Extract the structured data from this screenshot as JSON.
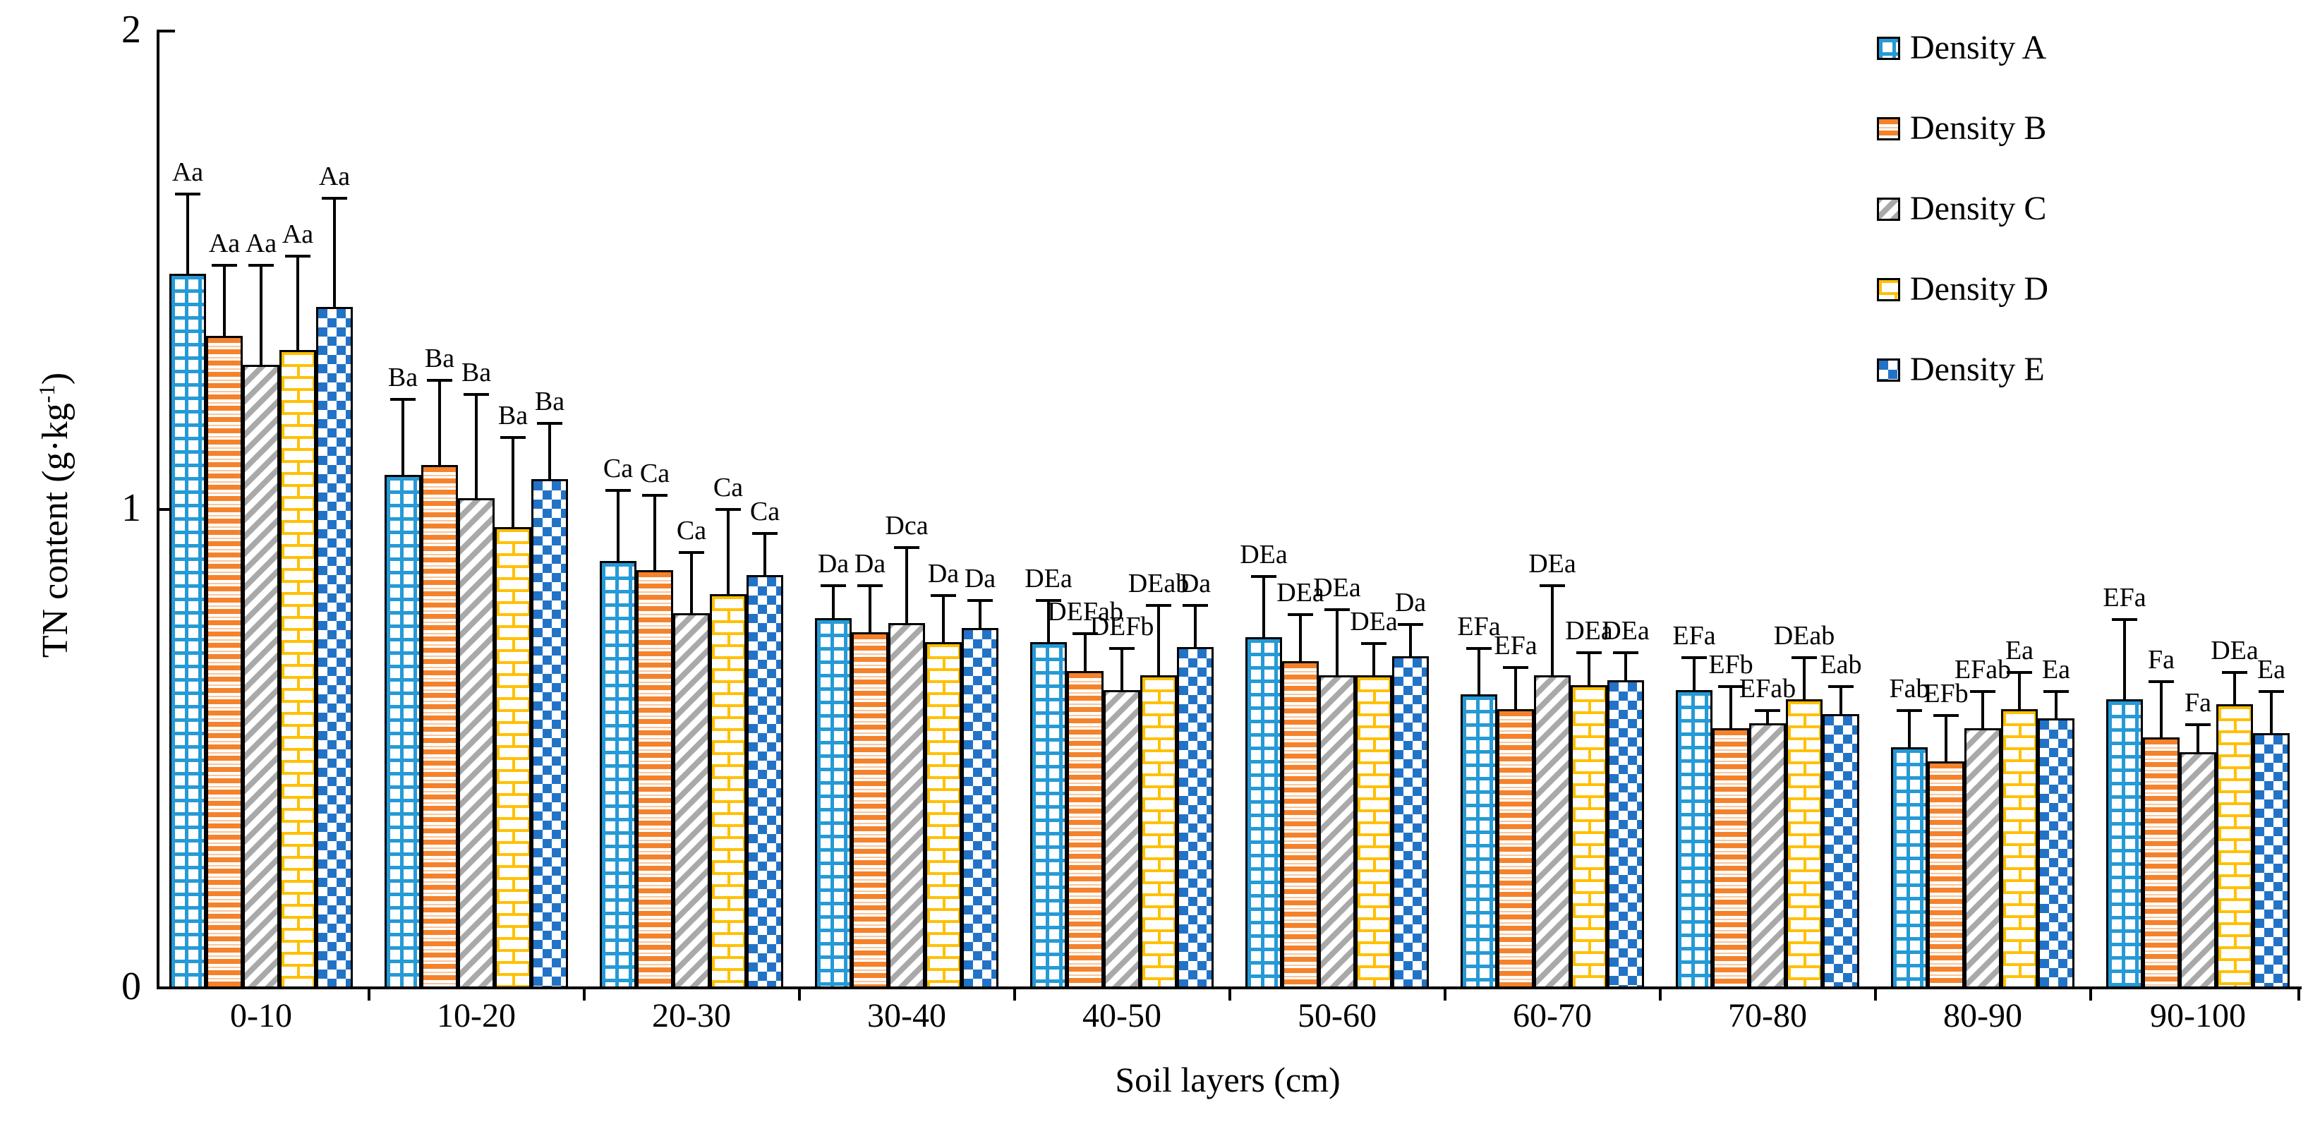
{
  "figure": {
    "y_axis": {
      "title_prefix": "TN content (g·kg",
      "title_sup": "-1",
      "title_suffix": ")",
      "tick_labels": [
        "0",
        "1",
        "2"
      ]
    },
    "x_axis": {
      "title": "Soil layers (cm)"
    }
  },
  "colors": {
    "density_a_grid_blue": "#259AD6",
    "density_b_orange": "#F5822B",
    "density_b_light_orange": "#F9C59B",
    "density_c_gray": "#A9A9A9",
    "density_d_yellow": "#FFC000",
    "density_e_blue": "#2273C6",
    "axis_and_text": "#000000",
    "background": "#FFFFFF"
  },
  "chart_data": {
    "type": "bar",
    "title": "",
    "xlabel": "Soil layers (cm)",
    "ylabel": "TN content (g·kg-1)",
    "ylim": [
      0,
      2
    ],
    "yticks": [
      0,
      1,
      2
    ],
    "grid": false,
    "legend_position": "top-right",
    "error_bars": "upper only",
    "categories": [
      "0-10",
      "10-20",
      "20-30",
      "30-40",
      "40-50",
      "50-60",
      "60-70",
      "70-80",
      "80-90",
      "90-100"
    ],
    "series": [
      {
        "name": "Density A",
        "pattern": "grid",
        "color": "#259AD6",
        "values": [
          1.49,
          1.07,
          0.89,
          0.77,
          0.72,
          0.73,
          0.61,
          0.62,
          0.5,
          0.6
        ],
        "errors": [
          0.17,
          0.16,
          0.15,
          0.07,
          0.09,
          0.13,
          0.1,
          0.07,
          0.08,
          0.17
        ],
        "sig_labels": [
          "Aa",
          "Ba",
          "Ca",
          "Da",
          "DEa",
          "DEa",
          "EFa",
          "EFa",
          "Fab",
          "EFa"
        ]
      },
      {
        "name": "Density B",
        "pattern": "hlines",
        "color": "#F5822B",
        "values": [
          1.36,
          1.09,
          0.87,
          0.74,
          0.66,
          0.68,
          0.58,
          0.54,
          0.47,
          0.52
        ],
        "errors": [
          0.15,
          0.18,
          0.16,
          0.1,
          0.08,
          0.1,
          0.09,
          0.09,
          0.1,
          0.12
        ],
        "sig_labels": [
          "Aa",
          "Ba",
          "Ca",
          "Da",
          "DEFab",
          "DEa",
          "EFa",
          "EFb",
          "EFb",
          "Fa"
        ]
      },
      {
        "name": "Density C",
        "pattern": "diag",
        "color": "#A9A9A9",
        "values": [
          1.3,
          1.02,
          0.78,
          0.76,
          0.62,
          0.65,
          0.65,
          0.55,
          0.54,
          0.49
        ],
        "errors": [
          0.21,
          0.22,
          0.13,
          0.16,
          0.09,
          0.14,
          0.19,
          0.03,
          0.08,
          0.06
        ],
        "sig_labels": [
          "Aa",
          "Ba",
          "Ca",
          "Dca",
          "DEFb",
          "DEa",
          "DEa",
          "EFab",
          "EFab",
          "Fa"
        ]
      },
      {
        "name": "Density D",
        "pattern": "brick",
        "color": "#FFC000",
        "values": [
          1.33,
          0.96,
          0.82,
          0.72,
          0.65,
          0.65,
          0.63,
          0.6,
          0.58,
          0.59
        ],
        "errors": [
          0.2,
          0.19,
          0.18,
          0.1,
          0.15,
          0.07,
          0.07,
          0.09,
          0.08,
          0.07
        ],
        "sig_labels": [
          "Aa",
          "Ba",
          "Ca",
          "Da",
          "DEab",
          "DEa",
          "DEa",
          "DEab",
          "Ea",
          "DEa"
        ]
      },
      {
        "name": "Density E",
        "pattern": "checker",
        "color": "#2273C6",
        "values": [
          1.42,
          1.06,
          0.86,
          0.75,
          0.71,
          0.69,
          0.64,
          0.57,
          0.56,
          0.53
        ],
        "errors": [
          0.23,
          0.12,
          0.09,
          0.06,
          0.09,
          0.07,
          0.06,
          0.06,
          0.06,
          0.09
        ],
        "sig_labels": [
          "Aa",
          "Ba",
          "Ca",
          "Da",
          "Da",
          "Da",
          "DEa",
          "Eab",
          "Ea",
          "Ea"
        ]
      }
    ]
  }
}
